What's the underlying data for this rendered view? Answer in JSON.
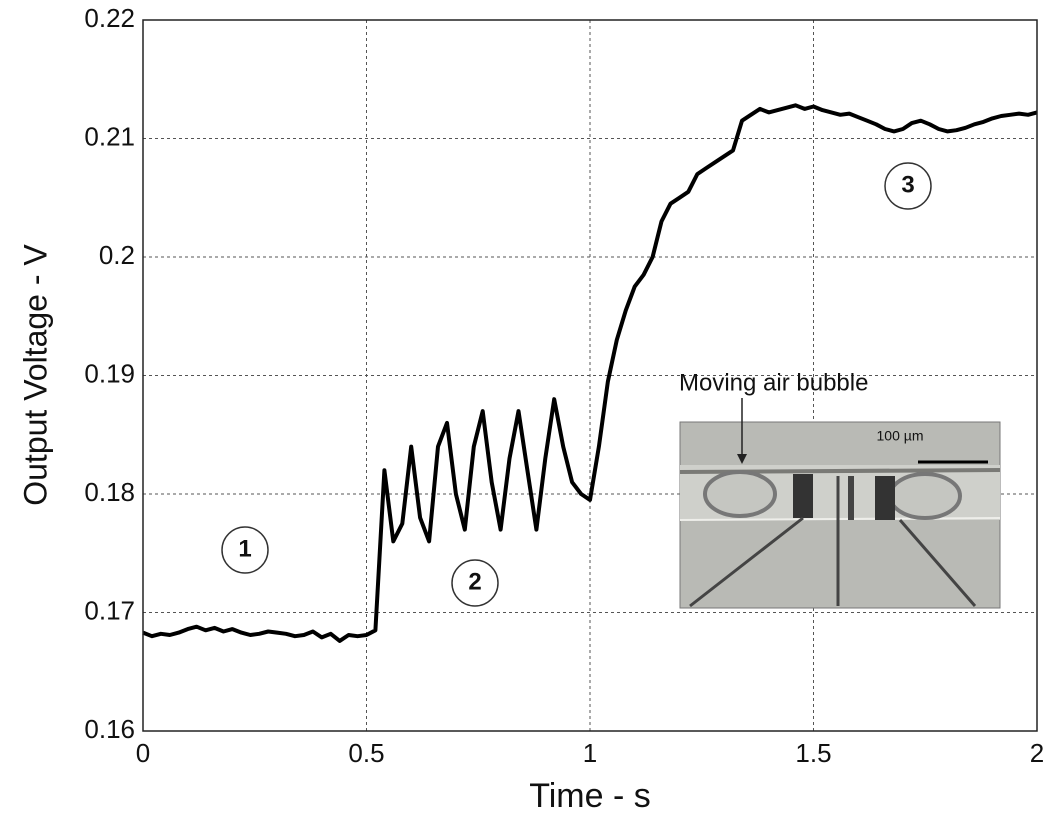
{
  "chart_data": {
    "type": "line",
    "xlabel": "Time - s",
    "ylabel": "Output Voltage - V",
    "x": [
      0,
      0.02,
      0.04,
      0.06,
      0.08,
      0.1,
      0.12,
      0.14,
      0.16,
      0.18,
      0.2,
      0.22,
      0.24,
      0.26,
      0.28,
      0.3,
      0.32,
      0.34,
      0.36,
      0.38,
      0.4,
      0.42,
      0.44,
      0.46,
      0.48,
      0.5,
      0.52,
      0.54,
      0.56,
      0.58,
      0.6,
      0.62,
      0.64,
      0.66,
      0.68,
      0.7,
      0.72,
      0.74,
      0.76,
      0.78,
      0.8,
      0.82,
      0.84,
      0.86,
      0.88,
      0.9,
      0.92,
      0.94,
      0.96,
      0.98,
      1,
      1.02,
      1.04,
      1.06,
      1.08,
      1.1,
      1.12,
      1.14,
      1.16,
      1.18,
      1.2,
      1.22,
      1.24,
      1.26,
      1.28,
      1.3,
      1.32,
      1.34,
      1.36,
      1.38,
      1.4,
      1.42,
      1.44,
      1.46,
      1.48,
      1.5,
      1.52,
      1.54,
      1.56,
      1.58,
      1.6,
      1.62,
      1.64,
      1.66,
      1.68,
      1.7,
      1.72,
      1.74,
      1.76,
      1.78,
      1.8,
      1.82,
      1.84,
      1.86,
      1.88,
      1.9,
      1.92,
      1.94,
      1.96,
      1.98,
      2
    ],
    "values": [
      0.1683,
      0.168,
      0.1682,
      0.1681,
      0.1683,
      0.1686,
      0.1688,
      0.1685,
      0.1687,
      0.1684,
      0.1686,
      0.1683,
      0.1681,
      0.1682,
      0.1684,
      0.1683,
      0.1682,
      0.168,
      0.1681,
      0.1684,
      0.1679,
      0.1682,
      0.1676,
      0.1681,
      0.168,
      0.1681,
      0.1685,
      0.182,
      0.176,
      0.1775,
      0.184,
      0.178,
      0.176,
      0.184,
      0.186,
      0.18,
      0.177,
      0.184,
      0.187,
      0.181,
      0.177,
      0.183,
      0.187,
      0.182,
      0.177,
      0.183,
      0.188,
      0.184,
      0.181,
      0.18,
      0.1795,
      0.184,
      0.1895,
      0.193,
      0.1955,
      0.1975,
      0.1985,
      0.2,
      0.203,
      0.2045,
      0.205,
      0.2055,
      0.207,
      0.2075,
      0.208,
      0.2085,
      0.209,
      0.2115,
      0.212,
      0.2125,
      0.2122,
      0.2124,
      0.2126,
      0.2128,
      0.2125,
      0.2127,
      0.2124,
      0.2122,
      0.212,
      0.2121,
      0.2118,
      0.2115,
      0.2112,
      0.2108,
      0.2106,
      0.2108,
      0.2113,
      0.2115,
      0.2112,
      0.2108,
      0.2106,
      0.2107,
      0.2109,
      0.2112,
      0.2114,
      0.2117,
      0.2119,
      0.212,
      0.2121,
      0.212,
      0.2122
    ],
    "color": "#000000",
    "xlim": [
      0,
      2
    ],
    "xticks": [
      0,
      0.5,
      1,
      1.5,
      2
    ],
    "ylim": [
      0.16,
      0.22
    ],
    "yticks": [
      0.16,
      0.17,
      0.18,
      0.19,
      0.2,
      0.21,
      0.22
    ],
    "grid": true,
    "annotations": [
      "1",
      "2",
      "3",
      "Moving air bubble",
      "100 µm"
    ]
  }
}
